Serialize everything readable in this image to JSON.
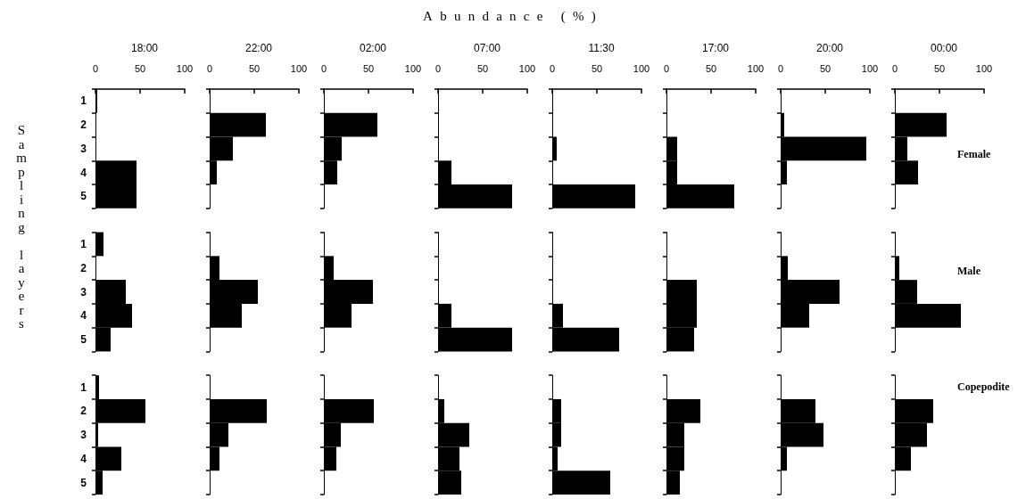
{
  "chart_data": [
    {
      "type": "bar",
      "orientation": "horizontal",
      "title": "18:00",
      "ylabel": "Sampling layers",
      "categories": [
        "1",
        "2",
        "3",
        "4",
        "5",
        null,
        "1",
        "2",
        "3",
        "4",
        "5",
        null,
        "1",
        "2",
        "3",
        "4",
        "5"
      ],
      "values": [
        2,
        0,
        0,
        46,
        46,
        null,
        9,
        0,
        34,
        41,
        17,
        null,
        4,
        56,
        3,
        29,
        8
      ],
      "color": "#000000",
      "xlim": [
        0,
        100
      ],
      "xticks": [
        0,
        50,
        100
      ]
    },
    {
      "type": "bar",
      "orientation": "horizontal",
      "title": "22:00",
      "categories": [
        null,
        null,
        null,
        null,
        null,
        null,
        null,
        null,
        null,
        null,
        null,
        null,
        null,
        null,
        null,
        null,
        null
      ],
      "values": [
        0,
        63,
        26,
        8,
        0,
        null,
        0,
        11,
        54,
        36,
        0,
        null,
        0,
        64,
        21,
        11,
        0
      ],
      "color": "#000000",
      "xlim": [
        0,
        100
      ],
      "xticks": [
        0,
        50,
        100
      ],
      "tick_labels": "x"
    },
    {
      "type": "bar",
      "orientation": "horizontal",
      "title": "02:00",
      "categories": [
        null,
        null,
        null,
        null,
        null,
        null,
        null,
        null,
        null,
        null,
        null,
        null,
        null,
        null,
        null,
        null,
        null
      ],
      "values": [
        0,
        60,
        20,
        15,
        0,
        null,
        0,
        11,
        55,
        31,
        0,
        null,
        0,
        56,
        19,
        14,
        0
      ],
      "color": "#000000",
      "xlim": [
        0,
        100
      ],
      "xticks": [
        0,
        50,
        100
      ],
      "tick_labels": "x"
    },
    {
      "type": "bar",
      "orientation": "horizontal",
      "title": "07:00",
      "xlabel": "Abundance (%)",
      "categories": [
        null,
        null,
        null,
        null,
        null,
        null,
        null,
        null,
        null,
        null,
        null,
        null,
        null,
        null,
        null,
        null,
        null
      ],
      "values": [
        0,
        0,
        0,
        15,
        83,
        null,
        0,
        0,
        0,
        15,
        83,
        null,
        0,
        7,
        35,
        24,
        26
      ],
      "color": "#000000",
      "xlim": [
        0,
        100
      ],
      "xticks": [
        0,
        50,
        100
      ],
      "tick_labels": "x"
    },
    {
      "type": "bar",
      "orientation": "horizontal",
      "title": "11:30",
      "categories": [
        null,
        null,
        null,
        null,
        null,
        null,
        null,
        null,
        null,
        null,
        null,
        null,
        null,
        null,
        null,
        null,
        null
      ],
      "values": [
        0,
        0,
        5,
        0,
        93,
        null,
        0,
        0,
        0,
        12,
        75,
        null,
        0,
        10,
        10,
        6,
        65
      ],
      "color": "#000000",
      "xlim": [
        0,
        100
      ],
      "xticks": [
        0,
        50,
        100
      ],
      "tick_labels": "x"
    },
    {
      "type": "bar",
      "orientation": "horizontal",
      "title": "17:00",
      "categories": [
        null,
        null,
        null,
        null,
        null,
        null,
        null,
        null,
        null,
        null,
        null,
        null,
        null,
        null,
        null,
        null,
        null
      ],
      "values": [
        0,
        0,
        12,
        12,
        76,
        null,
        0,
        0,
        34,
        34,
        31,
        null,
        0,
        38,
        20,
        20,
        15
      ],
      "color": "#000000",
      "xlim": [
        0,
        100
      ],
      "xticks": [
        0,
        50,
        100
      ],
      "tick_labels": "x"
    },
    {
      "type": "bar",
      "orientation": "horizontal",
      "title": "20:00",
      "categories": [
        null,
        null,
        null,
        null,
        null,
        null,
        null,
        null,
        null,
        null,
        null,
        null,
        null,
        null,
        null,
        null,
        null
      ],
      "values": [
        0,
        4,
        96,
        7,
        0,
        null,
        0,
        8,
        66,
        32,
        0,
        null,
        0,
        39,
        48,
        7,
        0
      ],
      "color": "#000000",
      "xlim": [
        0,
        100
      ],
      "xticks": [
        0,
        50,
        100
      ],
      "tick_labels": "x"
    },
    {
      "type": "bar",
      "orientation": "horizontal",
      "title": "00:00",
      "annotations": [
        "Female",
        "Male",
        "Copepodite"
      ],
      "categories": [
        null,
        null,
        null,
        null,
        null,
        null,
        null,
        null,
        null,
        null,
        null,
        null,
        null,
        null,
        null,
        null,
        null
      ],
      "values": [
        0,
        58,
        14,
        26,
        0,
        null,
        0,
        5,
        25,
        74,
        0,
        null,
        0,
        43,
        36,
        18,
        0
      ],
      "color": "#000000",
      "xlim": [
        0,
        100
      ],
      "xticks": [
        0,
        50,
        100
      ],
      "tick_labels": "x"
    }
  ]
}
